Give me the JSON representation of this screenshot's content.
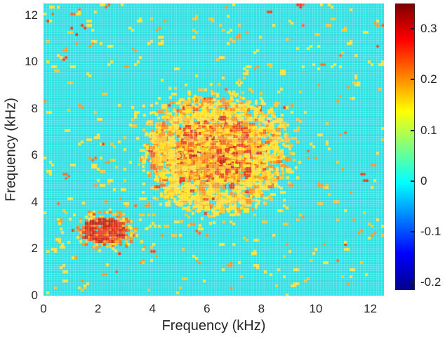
{
  "figure": {
    "background": "#ffffff",
    "text_color": "#262626"
  },
  "chart_data": {
    "type": "heatmap",
    "title": "",
    "xlabel": "Frequency (kHz)",
    "ylabel": "Frequency (kHz)",
    "x_range": [
      0,
      12.5
    ],
    "y_range": [
      0,
      12.5
    ],
    "x_ticks": [
      0,
      2,
      4,
      6,
      8,
      10,
      12
    ],
    "y_ticks": [
      0,
      2,
      4,
      6,
      8,
      10,
      12
    ],
    "grid": false,
    "legend": "none",
    "colorbar": {
      "position": "right",
      "range": [
        -0.215,
        0.35
      ],
      "ticks": [
        0.3,
        0.2,
        0.1,
        0,
        -0.1,
        -0.2
      ],
      "tick_labels": [
        "0.3",
        "0.2",
        "0.1",
        "0",
        "-0.1",
        "-0.2"
      ],
      "colormap": "jet",
      "gradient_stops": [
        {
          "pos": 0.0,
          "color": "#7f0000"
        },
        {
          "pos": 0.125,
          "color": "#ff0000"
        },
        {
          "pos": 0.375,
          "color": "#ffff00"
        },
        {
          "pos": 0.625,
          "color": "#00ffff"
        },
        {
          "pos": 0.875,
          "color": "#0000ff"
        },
        {
          "pos": 1.0,
          "color": "#00008b"
        }
      ]
    },
    "background_value": 0,
    "background_color": "#28dfe3",
    "texture_line_color": "rgba(255,255,255,0.25)",
    "grid_cells": [
      128,
      128
    ],
    "seed": 7,
    "palette": {
      "yellow": "#ffdf29",
      "gold": "#ffc11e",
      "orange": "#fb8f17",
      "deep_orange": "#f2601b",
      "red": "#e63715",
      "dark_red": "#bb1c0c"
    },
    "features": {
      "background_noise": {
        "count": 430,
        "description": "sparse positive speckles (~0.05-0.2) scattered uniformly over cyan zero-valued background"
      },
      "main_cluster": {
        "description": "large diffuse mottled cluster of positive correlation (~0.1-0.3) with patchy ring fringe",
        "center_khz": [
          6.25,
          6.15
        ],
        "sigma_khz": 1.15,
        "max_radius_khz": 2.85,
        "samples": 2400,
        "ring_radius_khz": 2.3,
        "ring_samples": 300,
        "halo_samples": 80
      },
      "small_cluster": {
        "description": "compact strong cluster (~0.25-0.35, red/dark-red core) with orange-yellow fringe",
        "center_khz": [
          2.2,
          2.85
        ],
        "core_rx_khz": 0.82,
        "core_ry_khz": 0.55,
        "fringe_rx_khz": 1.2,
        "fringe_ry_khz": 0.92
      }
    }
  }
}
